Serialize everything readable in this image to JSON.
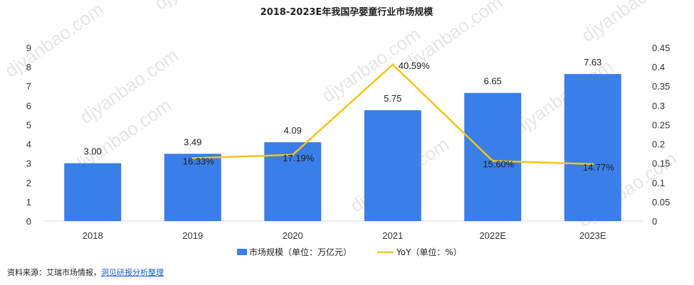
{
  "chart_data": {
    "type": "bar+line",
    "title": "2018-2023E年我国孕婴童行业市场规模",
    "categories": [
      "2018",
      "2019",
      "2020",
      "2021",
      "2022E",
      "2023E"
    ],
    "series": [
      {
        "name": "市场规模（单位：万亿元）",
        "type": "bar",
        "axis": "left",
        "color": "#3a7ee8",
        "values": [
          3.0,
          3.49,
          4.09,
          5.75,
          6.65,
          7.63
        ],
        "labels": [
          "3.00",
          "3.49",
          "4.09",
          "5.75",
          "6.65",
          "7.63"
        ]
      },
      {
        "name": "YoY（单位：%）",
        "type": "line",
        "axis": "right",
        "color": "#f3c319",
        "values": [
          null,
          0.1633,
          0.1719,
          0.4059,
          0.156,
          0.1477
        ],
        "labels": [
          "",
          "16.33%",
          "17.19%",
          "40.59%",
          "15.60%",
          "14.77%"
        ]
      }
    ],
    "y_left": {
      "min": 0,
      "max": 9,
      "ticks": [
        "0",
        "1",
        "2",
        "3",
        "4",
        "5",
        "6",
        "7",
        "8",
        "9"
      ]
    },
    "y_right": {
      "min": 0,
      "max": 0.45,
      "ticks": [
        "0",
        "0.05",
        "0.1",
        "0.15",
        "0.2",
        "0.25",
        "0.3",
        "0.35",
        "0.4",
        "0.45"
      ]
    },
    "legend_position": "bottom"
  },
  "watermark": "djyanbao.com",
  "source": {
    "prefix": "资料来源：艾瑞市场情报，",
    "link": "洞见研报分析整理"
  }
}
